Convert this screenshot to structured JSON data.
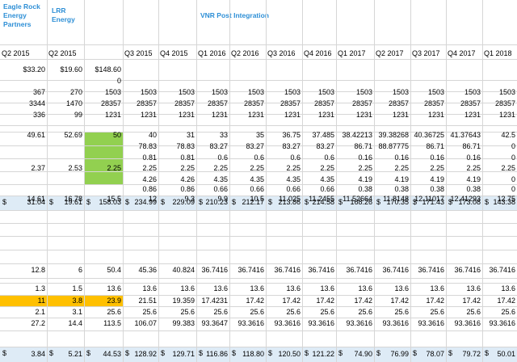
{
  "headers": {
    "eagle_rock": [
      "Eagle Rock",
      "Energy",
      "Partners"
    ],
    "lrr": [
      "LRR",
      "Energy"
    ],
    "vnr": "VNR Post Integration"
  },
  "periods": [
    "Q2 2015",
    "Q2 2015",
    "",
    "Q3 2015",
    "Q4 2015",
    "Q1 2016",
    "Q2 2016",
    "Q3 2016",
    "Q4 2016",
    "Q1 2017",
    "Q2 2017",
    "Q3 2017",
    "Q4 2017",
    "Q1 2018"
  ],
  "rows": [
    [
      "$33.20",
      "$19.60",
      "$148.60",
      "",
      "",
      "",
      "",
      "",
      "",
      "",
      "",
      "",
      "",
      ""
    ],
    [
      "",
      "",
      "0",
      "",
      "",
      "",
      "",
      "",
      "",
      "",
      "",
      "",
      "",
      ""
    ],
    [
      "367",
      "270",
      "1503",
      "1503",
      "1503",
      "1503",
      "1503",
      "1503",
      "1503",
      "1503",
      "1503",
      "1503",
      "1503",
      "1503"
    ],
    [
      "3344",
      "1470",
      "28357",
      "28357",
      "28357",
      "28357",
      "28357",
      "28357",
      "28357",
      "28357",
      "28357",
      "28357",
      "28357",
      "28357"
    ],
    [
      "336",
      "99",
      "1231",
      "1231",
      "1231",
      "1231",
      "1231",
      "1231",
      "1231",
      "1231",
      "1231",
      "1231",
      "1231",
      "1231"
    ],
    [
      "",
      "",
      "",
      "",
      "",
      "",
      "",
      "",
      "",
      "",
      "",
      "",
      "",
      ""
    ],
    [
      "49.61",
      "52.69",
      "50",
      "40",
      "31",
      "33",
      "35",
      "36.75",
      "37.485",
      "38.42213",
      "39.38268",
      "40.36725",
      "41.37643",
      "42.5"
    ],
    [
      "",
      "",
      "",
      "78.83",
      "78.83",
      "83.27",
      "83.27",
      "83.27",
      "83.27",
      "86.71",
      "88.87775",
      "86.71",
      "86.71",
      "0"
    ],
    [
      "",
      "",
      "",
      "0.81",
      "0.81",
      "0.6",
      "0.6",
      "0.6",
      "0.6",
      "0.16",
      "0.16",
      "0.16",
      "0.16",
      "0"
    ],
    [
      "2.37",
      "2.53",
      "2.25",
      "2.25",
      "2.25",
      "2.25",
      "2.25",
      "2.25",
      "2.25",
      "2.25",
      "2.25",
      "2.25",
      "2.25",
      "2.25"
    ],
    [
      "",
      "",
      "",
      "4.26",
      "4.26",
      "4.35",
      "4.35",
      "4.35",
      "4.35",
      "4.19",
      "4.19",
      "4.19",
      "4.19",
      "0"
    ],
    [
      "",
      "",
      "",
      "0.86",
      "0.86",
      "0.66",
      "0.66",
      "0.66",
      "0.66",
      "0.38",
      "0.38",
      "0.38",
      "0.38",
      "0"
    ],
    [
      "14.61",
      "16.78",
      "15.5",
      "12",
      "9.3",
      "9.9",
      "10.5",
      "11.025",
      "11.2455",
      "11.52664",
      "11.8148",
      "12.11017",
      "12.41293",
      "12.75"
    ]
  ],
  "total1": [
    "31.04",
    "19.61",
    "158.03",
    "234.99",
    "229.09",
    "210.23",
    "212.17",
    "213.86",
    "214.58",
    "168.26",
    "170.35",
    "171.43",
    "173.08",
    "143.38"
  ],
  "rows2": [
    [
      "12.8",
      "6",
      "50.4",
      "45.36",
      "40.824",
      "36.7416",
      "36.7416",
      "36.7416",
      "36.7416",
      "36.7416",
      "36.7416",
      "36.7416",
      "36.7416",
      "36.7416"
    ],
    [
      "",
      "",
      "",
      "",
      "",
      "",
      "",
      "",
      "",
      "",
      "",
      "",
      "",
      ""
    ],
    [
      "1.3",
      "1.5",
      "13.6",
      "13.6",
      "13.6",
      "13.6",
      "13.6",
      "13.6",
      "13.6",
      "13.6",
      "13.6",
      "13.6",
      "13.6",
      "13.6"
    ],
    [
      "11",
      "3.8",
      "23.9",
      "21.51",
      "19.359",
      "17.4231",
      "17.42",
      "17.42",
      "17.42",
      "17.42",
      "17.42",
      "17.42",
      "17.42",
      "17.42"
    ],
    [
      "2.1",
      "3.1",
      "25.6",
      "25.6",
      "25.6",
      "25.6",
      "25.6",
      "25.6",
      "25.6",
      "25.6",
      "25.6",
      "25.6",
      "25.6",
      "25.6"
    ],
    [
      "27.2",
      "14.4",
      "113.5",
      "106.07",
      "99.383",
      "93.3647",
      "93.3616",
      "93.3616",
      "93.3616",
      "93.3616",
      "93.3616",
      "93.3616",
      "93.3616",
      "93.3616"
    ]
  ],
  "total2": [
    "3.84",
    "5.21",
    "44.53",
    "128.92",
    "129.71",
    "116.86",
    "118.80",
    "120.50",
    "121.22",
    "74.90",
    "76.99",
    "78.07",
    "79.72",
    "50.01"
  ],
  "dollar_sign": "$",
  "colors": {
    "header_blue": "#2e8fd6",
    "band": "#deebf6",
    "green": "#92d050",
    "orange": "#ffc000",
    "grid": "#d6d6d6"
  }
}
